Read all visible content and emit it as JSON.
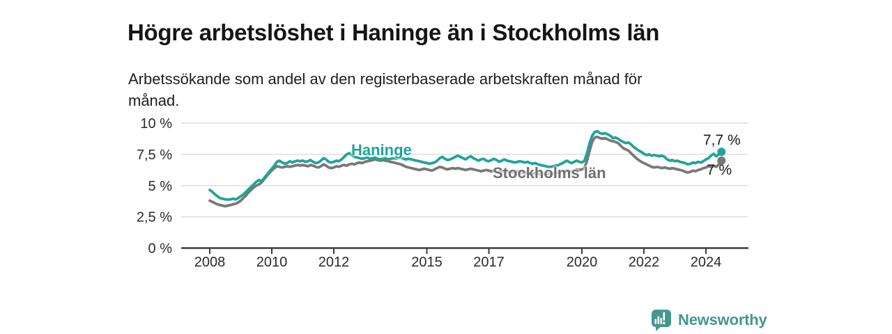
{
  "header": {
    "title": "Högre arbetslöshet i Haninge än i Stockholms län",
    "subtitle_lines": [
      "Arbetssökande som andel av den registerbaserade arbetskraften månad för",
      "månad."
    ]
  },
  "chart_data": {
    "type": "line",
    "unit": "%",
    "x_start": 2008.0,
    "points_per_year": 12,
    "x_axis": {
      "ticks": [
        {
          "value": 2008,
          "label": "2008"
        },
        {
          "value": 2010,
          "label": "2010"
        },
        {
          "value": 2012,
          "label": "2012"
        },
        {
          "value": 2015,
          "label": "2015"
        },
        {
          "value": 2017,
          "label": "2017"
        },
        {
          "value": 2020,
          "label": "2020"
        },
        {
          "value": 2022,
          "label": "2022"
        },
        {
          "value": 2024,
          "label": "2024"
        }
      ]
    },
    "y_axis": {
      "range": [
        0,
        10
      ],
      "ticks": [
        {
          "value": 0,
          "label": "0 %"
        },
        {
          "value": 2.5,
          "label": "2,5 %"
        },
        {
          "value": 5,
          "label": "5 %"
        },
        {
          "value": 7.5,
          "label": "7,5 %"
        },
        {
          "value": 10,
          "label": "10 %"
        }
      ]
    },
    "grid": true,
    "legend_position": "inline-labels",
    "series": [
      {
        "name": "Haninge",
        "color": "#20a49a",
        "end_label": "7,7 %",
        "end_value": 7.7,
        "values": [
          4.65,
          4.5,
          4.3,
          4.15,
          4.0,
          3.95,
          3.9,
          3.88,
          3.9,
          3.95,
          3.9,
          4.0,
          4.15,
          4.3,
          4.5,
          4.7,
          4.9,
          5.1,
          5.3,
          5.45,
          5.35,
          5.6,
          5.85,
          6.1,
          6.35,
          6.6,
          6.9,
          7.0,
          6.85,
          6.75,
          6.8,
          6.95,
          6.85,
          6.95,
          7.0,
          6.95,
          7.0,
          6.9,
          6.95,
          7.05,
          6.9,
          6.8,
          6.85,
          7.0,
          7.2,
          7.1,
          6.9,
          6.85,
          6.9,
          7.0,
          6.95,
          7.1,
          7.3,
          7.5,
          7.6,
          7.45,
          7.3,
          7.25,
          7.2,
          7.15,
          7.2,
          7.25,
          7.15,
          7.2,
          7.25,
          7.15,
          7.1,
          7.15,
          7.2,
          7.1,
          7.15,
          7.2,
          7.15,
          7.2,
          7.25,
          7.15,
          7.1,
          7.15,
          7.1,
          7.05,
          7.0,
          6.95,
          6.9,
          6.85,
          6.8,
          6.75,
          6.8,
          6.85,
          7.0,
          7.2,
          7.3,
          7.15,
          7.05,
          7.1,
          7.2,
          7.3,
          7.4,
          7.3,
          7.2,
          7.1,
          7.25,
          7.35,
          7.2,
          7.1,
          7.0,
          7.1,
          7.15,
          7.0,
          6.95,
          7.05,
          7.15,
          7.05,
          6.9,
          7.0,
          7.1,
          7.0,
          6.95,
          6.9,
          6.85,
          6.9,
          6.95,
          6.9,
          6.85,
          6.9,
          6.8,
          6.75,
          6.8,
          6.7,
          6.65,
          6.6,
          6.55,
          6.5,
          6.5,
          6.55,
          6.6,
          6.65,
          6.75,
          6.85,
          7.0,
          6.9,
          6.8,
          6.9,
          7.0,
          6.9,
          6.85,
          7.0,
          7.6,
          8.4,
          9.0,
          9.3,
          9.35,
          9.2,
          9.15,
          9.2,
          9.1,
          9.0,
          8.8,
          8.85,
          8.75,
          8.6,
          8.5,
          8.4,
          8.45,
          8.3,
          8.1,
          7.95,
          7.8,
          7.7,
          7.55,
          7.45,
          7.5,
          7.4,
          7.45,
          7.4,
          7.35,
          7.4,
          7.3,
          7.1,
          7.0,
          7.05,
          6.95,
          7.0,
          6.9,
          6.85,
          6.8,
          6.7,
          6.75,
          6.85,
          6.8,
          6.9,
          6.85,
          6.95,
          7.1,
          7.2,
          7.4,
          7.55,
          7.35,
          7.5,
          7.7
        ]
      },
      {
        "name": "Stockholms län",
        "color": "#787878",
        "end_label": "7 %",
        "end_value": 7.0,
        "values": [
          3.8,
          3.7,
          3.6,
          3.5,
          3.45,
          3.4,
          3.35,
          3.4,
          3.45,
          3.5,
          3.55,
          3.65,
          3.8,
          4.0,
          4.2,
          4.45,
          4.65,
          4.85,
          5.0,
          5.1,
          5.25,
          5.5,
          5.75,
          6.0,
          6.2,
          6.4,
          6.55,
          6.5,
          6.45,
          6.5,
          6.55,
          6.5,
          6.55,
          6.6,
          6.65,
          6.6,
          6.65,
          6.6,
          6.55,
          6.65,
          6.6,
          6.5,
          6.45,
          6.55,
          6.7,
          6.6,
          6.45,
          6.4,
          6.45,
          6.55,
          6.5,
          6.6,
          6.65,
          6.6,
          6.7,
          6.75,
          6.7,
          6.8,
          6.85,
          6.8,
          6.9,
          6.95,
          7.0,
          7.05,
          7.1,
          7.05,
          7.0,
          7.05,
          7.0,
          6.95,
          6.9,
          6.85,
          6.8,
          6.75,
          6.7,
          6.6,
          6.5,
          6.45,
          6.4,
          6.35,
          6.3,
          6.25,
          6.3,
          6.35,
          6.3,
          6.25,
          6.2,
          6.3,
          6.4,
          6.5,
          6.45,
          6.35,
          6.3,
          6.35,
          6.4,
          6.35,
          6.4,
          6.35,
          6.3,
          6.25,
          6.3,
          6.35,
          6.3,
          6.25,
          6.2,
          6.15,
          6.2,
          6.25,
          6.2,
          6.15,
          6.2,
          6.15,
          6.1,
          6.15,
          6.2,
          6.15,
          6.1,
          6.05,
          6.1,
          6.15,
          6.1,
          6.05,
          6.0,
          6.05,
          6.0,
          5.95,
          6.0,
          5.95,
          5.9,
          5.95,
          5.9,
          5.95,
          5.9,
          5.95,
          6.0,
          6.05,
          6.1,
          6.15,
          6.2,
          6.15,
          6.1,
          6.2,
          6.3,
          6.25,
          6.3,
          6.4,
          7.0,
          7.8,
          8.5,
          8.85,
          8.9,
          8.8,
          8.75,
          8.8,
          8.7,
          8.6,
          8.55,
          8.5,
          8.4,
          8.2,
          8.0,
          7.9,
          7.8,
          7.6,
          7.4,
          7.2,
          7.05,
          6.9,
          6.8,
          6.7,
          6.6,
          6.5,
          6.45,
          6.5,
          6.45,
          6.4,
          6.45,
          6.4,
          6.35,
          6.4,
          6.35,
          6.3,
          6.25,
          6.2,
          6.1,
          6.05,
          6.1,
          6.2,
          6.15,
          6.25,
          6.3,
          6.4,
          6.45,
          6.55,
          6.5,
          6.6,
          6.5,
          6.7,
          7.0
        ]
      }
    ]
  },
  "footer": {
    "brand": "Newsworthy",
    "brand_color": "#45978d"
  }
}
